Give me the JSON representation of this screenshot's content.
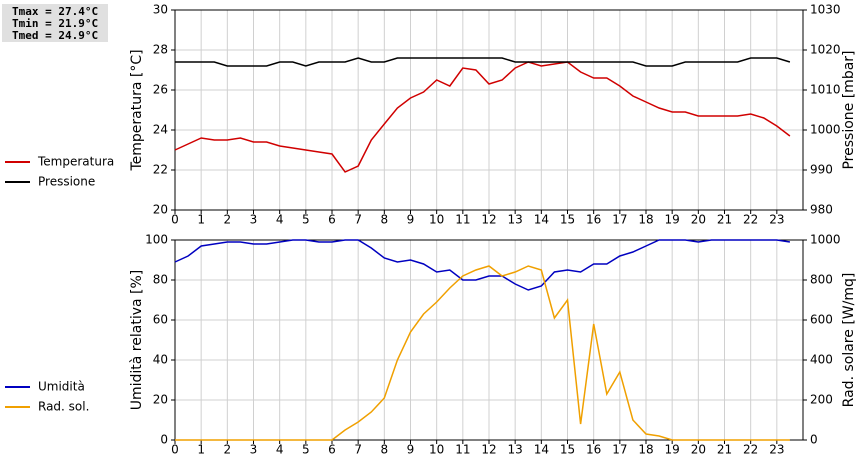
{
  "chart_data": [
    {
      "type": "line",
      "annotations": [
        "Tmax = 27.4°C",
        "Tmin = 21.9°C",
        "Tmed = 24.9°C"
      ],
      "ylabel": "Temperatura [°C]",
      "y2label": "Pressione [mbar]",
      "x": [
        0,
        0.5,
        1,
        1.5,
        2,
        2.5,
        3,
        3.5,
        4,
        4.5,
        5,
        5.5,
        6,
        6.5,
        7,
        7.5,
        8,
        8.5,
        9,
        9.5,
        10,
        10.5,
        11,
        11.5,
        12,
        12.5,
        13,
        13.5,
        14,
        14.5,
        15,
        15.5,
        16,
        16.5,
        17,
        17.5,
        18,
        18.5,
        19,
        19.5,
        20,
        20.5,
        21,
        21.5,
        22,
        22.5,
        23,
        23.5
      ],
      "xlim": [
        0,
        24
      ],
      "xticks": [
        0,
        1,
        2,
        3,
        4,
        5,
        6,
        7,
        8,
        9,
        10,
        11,
        12,
        13,
        14,
        15,
        16,
        17,
        18,
        19,
        20,
        21,
        22,
        23
      ],
      "ylim": [
        20,
        30
      ],
      "yticks": [
        20,
        22,
        24,
        26,
        28,
        30
      ],
      "y2lim": [
        980,
        1030
      ],
      "y2ticks": [
        980,
        990,
        1000,
        1010,
        1020,
        1030
      ],
      "grid": true,
      "legend": "left",
      "series": [
        {
          "name": "Temperatura",
          "color": "#d00000",
          "values": [
            23.0,
            23.3,
            23.6,
            23.5,
            23.5,
            23.6,
            23.4,
            23.4,
            23.2,
            23.1,
            23.0,
            22.9,
            22.8,
            21.9,
            22.2,
            23.5,
            24.3,
            25.1,
            25.6,
            25.9,
            26.5,
            26.2,
            27.1,
            27.0,
            26.3,
            26.5,
            27.1,
            27.4,
            27.2,
            27.3,
            27.4,
            26.9,
            26.6,
            26.6,
            26.2,
            25.7,
            25.4,
            25.1,
            24.9,
            24.9,
            24.7,
            24.7,
            24.7,
            24.7,
            24.8,
            24.6,
            24.2,
            23.7
          ]
        },
        {
          "name": "Pressione",
          "color": "#000000",
          "axis": "y2",
          "values": [
            1017,
            1017,
            1017,
            1017,
            1016,
            1016,
            1016,
            1016,
            1017,
            1017,
            1016,
            1017,
            1017,
            1017,
            1018,
            1017,
            1017,
            1018,
            1018,
            1018,
            1018,
            1018,
            1018,
            1018,
            1018,
            1018,
            1017,
            1017,
            1017,
            1017,
            1017,
            1017,
            1017,
            1017,
            1017,
            1017,
            1016,
            1016,
            1016,
            1017,
            1017,
            1017,
            1017,
            1017,
            1018,
            1018,
            1018,
            1017
          ]
        }
      ]
    },
    {
      "type": "line",
      "ylabel": "Umidità relativa [%]",
      "y2label": "Rad. solare [W/mq]",
      "x": [
        0,
        0.5,
        1,
        1.5,
        2,
        2.5,
        3,
        3.5,
        4,
        4.5,
        5,
        5.5,
        6,
        6.5,
        7,
        7.5,
        8,
        8.5,
        9,
        9.5,
        10,
        10.5,
        11,
        11.5,
        12,
        12.5,
        13,
        13.5,
        14,
        14.5,
        15,
        15.5,
        16,
        16.5,
        17,
        17.5,
        18,
        18.5,
        19,
        19.5,
        20,
        20.5,
        21,
        21.5,
        22,
        22.5,
        23,
        23.5
      ],
      "xlim": [
        0,
        24
      ],
      "xticks": [
        0,
        1,
        2,
        3,
        4,
        5,
        6,
        7,
        8,
        9,
        10,
        11,
        12,
        13,
        14,
        15,
        16,
        17,
        18,
        19,
        20,
        21,
        22,
        23
      ],
      "ylim": [
        0,
        100
      ],
      "yticks": [
        0,
        20,
        40,
        60,
        80,
        100
      ],
      "y2lim": [
        0,
        1000
      ],
      "y2ticks": [
        0,
        200,
        400,
        600,
        800,
        1000
      ],
      "grid": true,
      "legend": "left",
      "series": [
        {
          "name": "Umidità",
          "color": "#0000c0",
          "values": [
            89,
            92,
            97,
            98,
            99,
            99,
            98,
            98,
            99,
            100,
            100,
            99,
            99,
            100,
            100,
            96,
            91,
            89,
            90,
            88,
            84,
            85,
            80,
            80,
            82,
            82,
            78,
            75,
            77,
            84,
            85,
            84,
            88,
            88,
            92,
            94,
            97,
            100,
            100,
            100,
            99,
            100,
            100,
            100,
            100,
            100,
            100,
            99
          ]
        },
        {
          "name": "Rad. sol.",
          "color": "#f0a000",
          "axis": "y2",
          "values": [
            0,
            0,
            0,
            0,
            0,
            0,
            0,
            0,
            0,
            0,
            0,
            0,
            0,
            50,
            90,
            140,
            210,
            400,
            540,
            630,
            690,
            760,
            820,
            850,
            870,
            820,
            840,
            870,
            850,
            610,
            700,
            80,
            580,
            230,
            340,
            100,
            30,
            20,
            0,
            0,
            0,
            0,
            0,
            0,
            0,
            0,
            0,
            0
          ]
        }
      ]
    }
  ]
}
